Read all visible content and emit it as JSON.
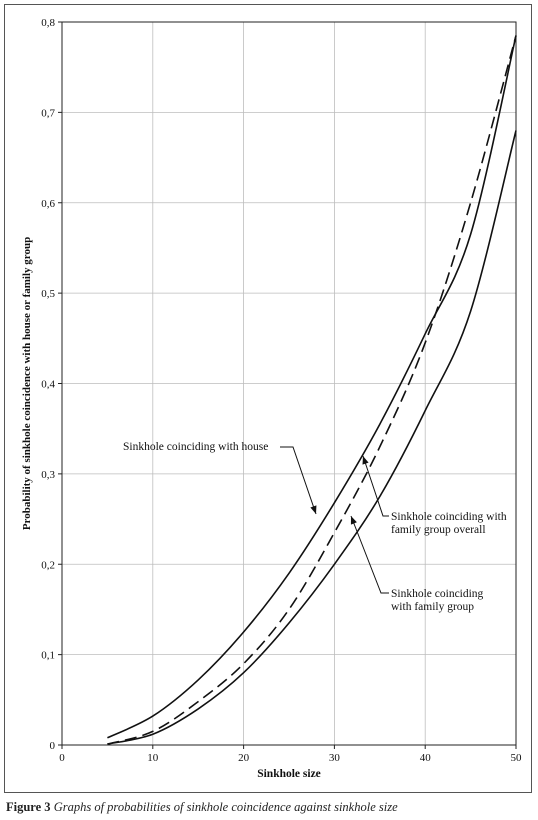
{
  "caption": {
    "label": "Figure 3",
    "text": "Graphs of probabilities of sinkhole coincidence against sinkhole size"
  },
  "chart_data": {
    "type": "line",
    "xlabel": "Sinkhole size",
    "ylabel": "Probability of sinkhole coincidence with house or family group",
    "xlim": [
      0,
      50
    ],
    "ylim": [
      0,
      0.8
    ],
    "x_ticks": [
      0,
      10,
      20,
      30,
      40,
      50
    ],
    "x_tick_labels": [
      "0",
      "10",
      "20",
      "30",
      "40",
      "50"
    ],
    "y_ticks": [
      0,
      0.1,
      0.2,
      0.3,
      0.4,
      0.5,
      0.6,
      0.7,
      0.8
    ],
    "y_tick_labels": [
      "0",
      "0,1",
      "0,2",
      "0,3",
      "0,4",
      "0,5",
      "0,6",
      "0,7",
      "0,8"
    ],
    "grid": true,
    "series": [
      {
        "name": "Sinkhole coinciding with house",
        "style": "solid",
        "x": [
          5,
          10,
          15,
          20,
          25,
          30,
          35,
          40,
          45,
          50
        ],
        "y": [
          0.008,
          0.032,
          0.072,
          0.125,
          0.19,
          0.268,
          0.355,
          0.455,
          0.565,
          0.785
        ]
      },
      {
        "name": "Sinkhole coinciding with family group overall",
        "style": "dashed",
        "x": [
          5,
          10,
          15,
          20,
          25,
          30,
          35,
          40,
          45,
          50
        ],
        "y": [
          0.001,
          0.015,
          0.048,
          0.09,
          0.15,
          0.235,
          0.33,
          0.445,
          0.6,
          0.785
        ]
      },
      {
        "name": "Sinkhole coinciding with family group",
        "style": "solid",
        "x": [
          5,
          10,
          15,
          20,
          25,
          30,
          35,
          40,
          45,
          50
        ],
        "y": [
          0.001,
          0.012,
          0.04,
          0.08,
          0.135,
          0.2,
          0.275,
          0.37,
          0.48,
          0.68
        ]
      }
    ],
    "annotations": [
      {
        "lines": [
          "Sinkhole coinciding with house"
        ]
      },
      {
        "lines": [
          "Sinkhole coinciding with",
          "family group overall"
        ]
      },
      {
        "lines": [
          "Sinkhole coinciding",
          "with family group"
        ]
      }
    ]
  }
}
